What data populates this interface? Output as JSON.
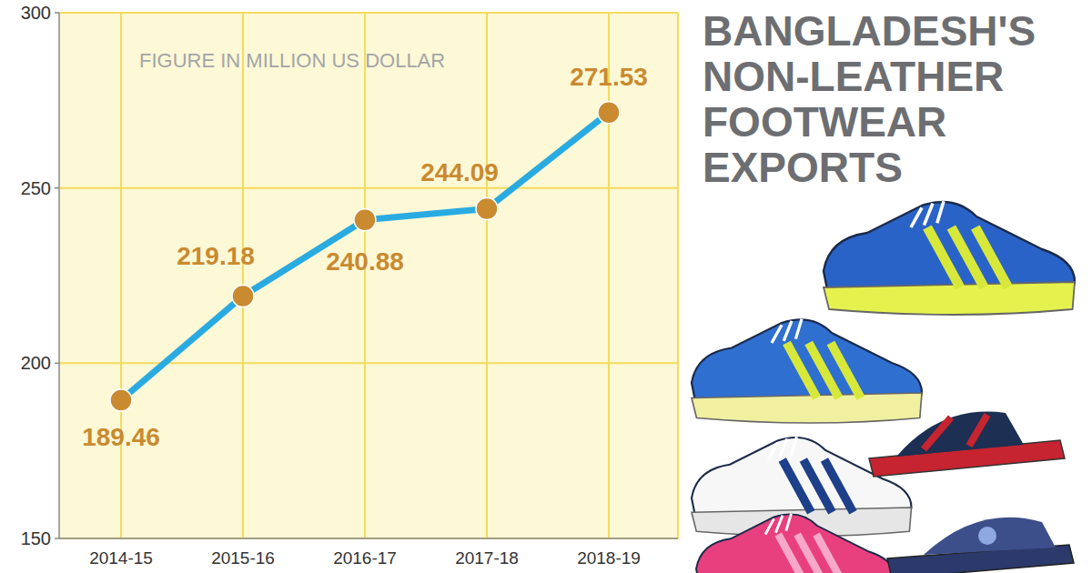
{
  "chart_data": {
    "type": "line",
    "title": "BANGLADESH'S NON-LEATHER FOOTWEAR EXPORTS",
    "subtitle": "FIGURE IN MILLION US DOLLAR",
    "categories": [
      "2014-15",
      "2015-16",
      "2016-17",
      "2017-18",
      "2018-19"
    ],
    "values": [
      189.46,
      219.18,
      240.88,
      244.09,
      271.53
    ],
    "color": "#29abe2",
    "marker": "circle",
    "ylim": [
      150,
      300
    ],
    "yticks": [
      150,
      200,
      250,
      300
    ],
    "grid": true,
    "data_labels": true
  }
}
